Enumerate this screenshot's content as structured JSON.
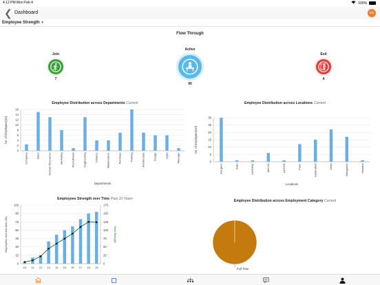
{
  "status": {
    "time": "4:12 PM",
    "date": "Mon Feb 4",
    "battery": "100%"
  },
  "nav": {
    "back_glyph": "❮",
    "title": "Dashboard",
    "avatar": "ER"
  },
  "subheader": {
    "label": "Employee Strength",
    "caret": "▾"
  },
  "flow": {
    "title": "Flow Through",
    "join": {
      "label": "Join",
      "value": "7",
      "color": "#3aa13a",
      "icon": "walking-person-icon"
    },
    "active": {
      "label": "Active",
      "value": "90",
      "color": "#5bb9e8",
      "icon": "desk-person-icon"
    },
    "exit": {
      "label": "Exit",
      "value": "4",
      "color": "#e23b3b",
      "icon": "walking-out-icon"
    }
  },
  "dept_chart": {
    "title": "Employee Distribution across Departments",
    "subtitle": "Current"
  },
  "loc_chart": {
    "title": "Employee Distribution across Locations",
    "subtitle": "Current"
  },
  "strength_chart": {
    "title": "Employees Strength over Time",
    "subtitle": "Past 10 Years"
  },
  "category_chart": {
    "title": "Employee Distribution across Employment Category",
    "subtitle": "Current"
  },
  "chart_data": [
    {
      "type": "bar",
      "categories": [
        "Company",
        "Sales",
        "Human Resources",
        "Marketing",
        "Recruitment",
        "Engineering",
        "Finance",
        "Maintenance",
        "Purchase",
        "Training",
        "Architecture",
        "Design",
        "Legal",
        "Manager"
      ],
      "values": [
        2.5,
        15,
        13,
        8,
        1,
        13,
        4,
        4,
        7,
        16,
        7,
        6,
        6,
        1
      ],
      "xlabel": "Departments",
      "ylabel": "No. of Employees(10)",
      "ylim": [
        0,
        16
      ],
      "yticks": [
        0,
        2,
        4,
        6,
        8,
        10,
        12,
        14,
        16
      ],
      "color": "#6aaee6"
    },
    {
      "type": "bar",
      "categories": [
        "Gurgaon",
        "India",
        "NIGERIA",
        "ABUJA",
        "LAGOS",
        "Pune",
        "Hyderabad",
        "Delhi",
        "Bangalore",
        "Mumbai"
      ],
      "values": [
        30,
        1,
        1,
        6,
        1,
        12,
        15,
        22,
        17,
        1
      ],
      "xlabel": "Locations",
      "ylabel": "No. of Employees(10)",
      "ylim": [
        0,
        30
      ],
      "yticks": [
        0,
        5,
        10,
        15,
        20,
        25,
        30
      ],
      "color": "#6aaee6"
    },
    {
      "type": "bar",
      "categories": [
        "10",
        "11",
        "12",
        "13",
        "14",
        "15",
        "16",
        "17",
        "18",
        "19"
      ],
      "series": [
        {
          "values": [
            3,
            11,
            15,
            40,
            52,
            60,
            67,
            80,
            90,
            93
          ],
          "type": "bar"
        },
        {
          "name": "Total Strength",
          "values": [
            5,
            10,
            22,
            45,
            60,
            75,
            90,
            110,
            125,
            124
          ],
          "type": "line",
          "axis": "right"
        }
      ],
      "ylabel": "Employees over the time (90)",
      "ylabel_right": "Total Strength",
      "ylim": [
        0,
        105
      ],
      "ylim_right": [
        0,
        175
      ],
      "yticks": [
        0,
        15,
        30,
        45,
        60,
        75,
        90,
        105
      ],
      "yticks_right": [
        0,
        25,
        50,
        75,
        100,
        125,
        150,
        175
      ],
      "colors": {
        "bar": "#6aaee6",
        "line": "#1f6b1f"
      }
    },
    {
      "type": "pie",
      "labels": [
        "Full Time"
      ],
      "values": [
        100
      ],
      "colors": [
        "#c57a0e"
      ]
    }
  ]
}
